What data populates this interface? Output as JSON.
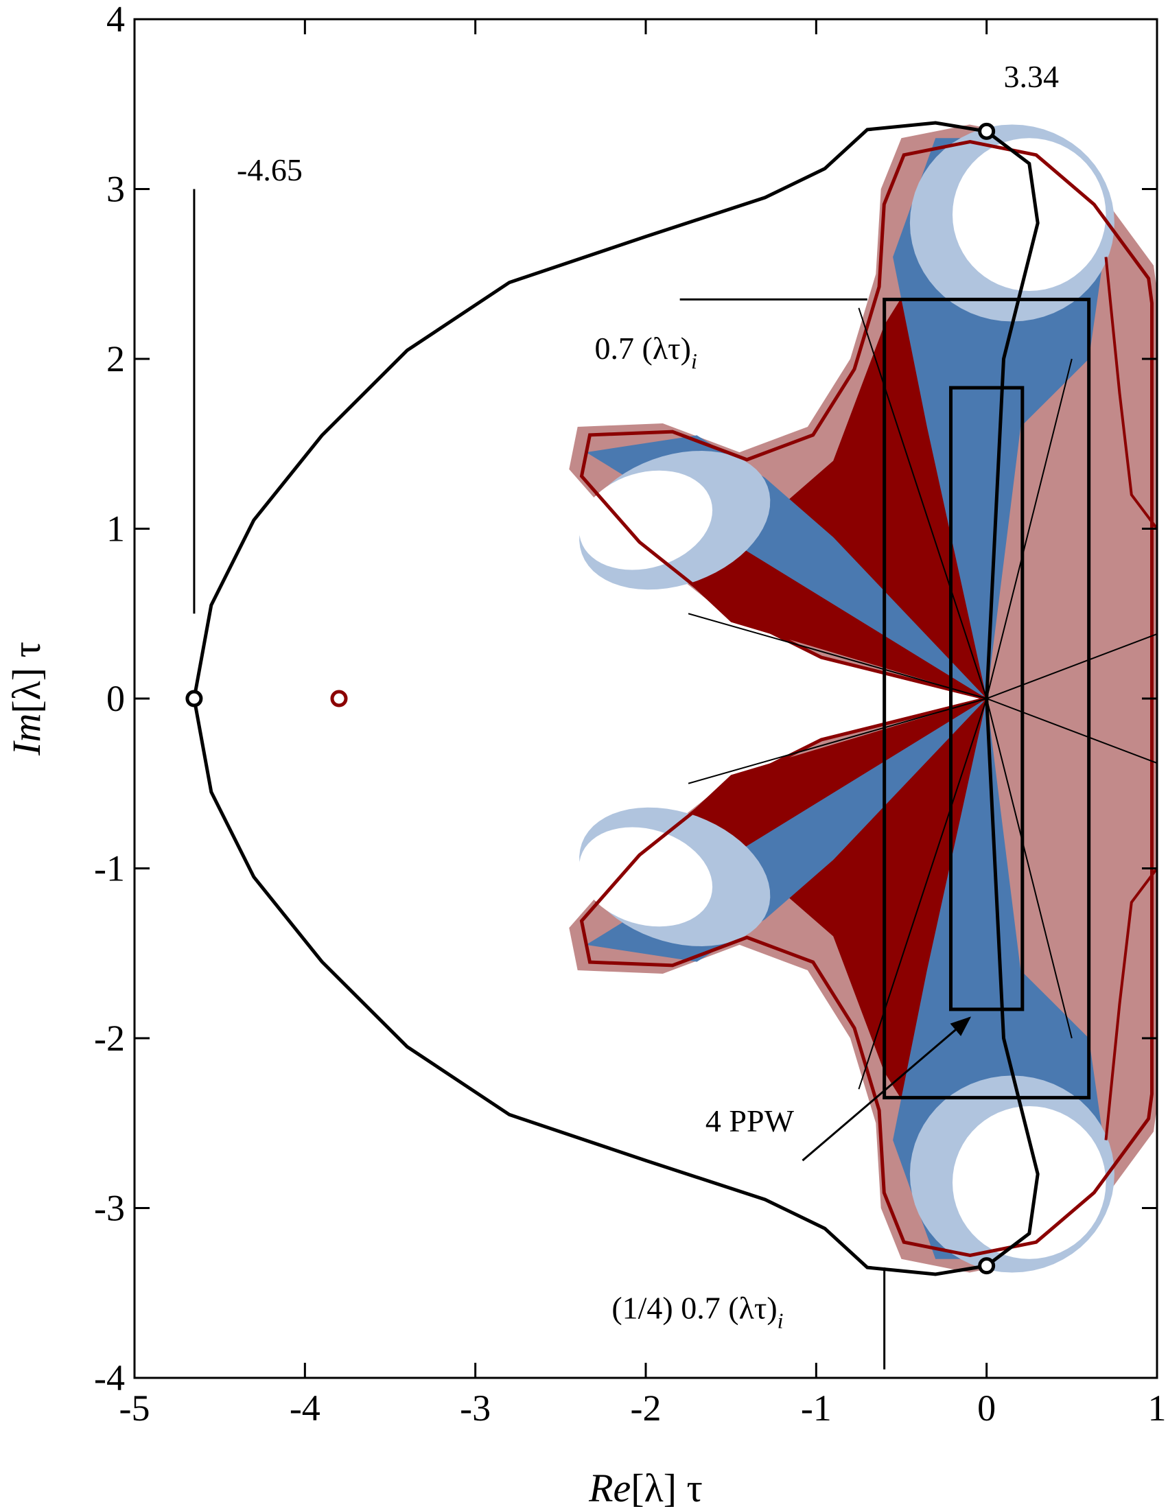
{
  "chart_data": {
    "type": "line",
    "xlim": [
      -5,
      1
    ],
    "ylim": [
      -4,
      4
    ],
    "xticks": [
      "-5",
      "-4",
      "-3",
      "-2",
      "-1",
      "0",
      "1"
    ],
    "yticks": [
      "-4",
      "-3",
      "-2",
      "-1",
      "0",
      "1",
      "2",
      "3",
      "4"
    ],
    "xlabel": {
      "italic": "Re",
      "rest": "[λ] τ"
    },
    "ylabel": {
      "italic": "Im",
      "rest": "[λ] τ"
    },
    "colors": {
      "dark_red": "#8b0000",
      "light_red": "#c28a8a",
      "steel_blue": "#4a79b0",
      "light_blue": "#b0c4de",
      "black": "#000000"
    },
    "stability_boundary": {
      "points": [
        [
          -4.65,
          0
        ],
        [
          -4.55,
          0.55
        ],
        [
          -4.3,
          1.05
        ],
        [
          -3.9,
          1.55
        ],
        [
          -3.4,
          2.05
        ],
        [
          -2.8,
          2.45
        ],
        [
          -2.0,
          2.72
        ],
        [
          -1.3,
          2.95
        ],
        [
          -0.95,
          3.12
        ],
        [
          -0.7,
          3.35
        ],
        [
          -0.3,
          3.39
        ],
        [
          0.0,
          3.34
        ],
        [
          0.25,
          3.15
        ],
        [
          0.3,
          2.8
        ],
        [
          0.2,
          2.4
        ],
        [
          0.1,
          2.0
        ],
        [
          0.05,
          1.0
        ],
        [
          0.0,
          0.0
        ]
      ],
      "symmetric": true
    },
    "markers": [
      {
        "x": -4.65,
        "y": 0,
        "color": "#000000"
      },
      {
        "x": 0,
        "y": 3.34,
        "color": "#000000"
      },
      {
        "x": 0,
        "y": -3.34,
        "color": "#000000"
      },
      {
        "x": -3.8,
        "y": 0,
        "color": "#8b0000"
      }
    ],
    "rays_through_origin": [
      [
        -1.75,
        0.5
      ],
      [
        -0.75,
        2.3
      ],
      [
        1.0,
        0.38
      ],
      [
        0.5,
        2.0
      ]
    ],
    "rectangles": [
      {
        "x": [
          -0.6,
          0.6
        ],
        "y": [
          -2.35,
          2.35
        ]
      },
      {
        "x": [
          -0.21,
          0.21
        ],
        "y": [
          -1.83,
          1.83
        ]
      }
    ],
    "annotations": {
      "top_value": "3.34",
      "left_value": "-4.65",
      "mid_label_main": "0.7 (λτ)",
      "mid_label_sub": "i",
      "bottom_label_main": "(1/4) 0.7 (λτ)",
      "bottom_label_sub": "i",
      "arrow_label": "4 PPW"
    }
  }
}
